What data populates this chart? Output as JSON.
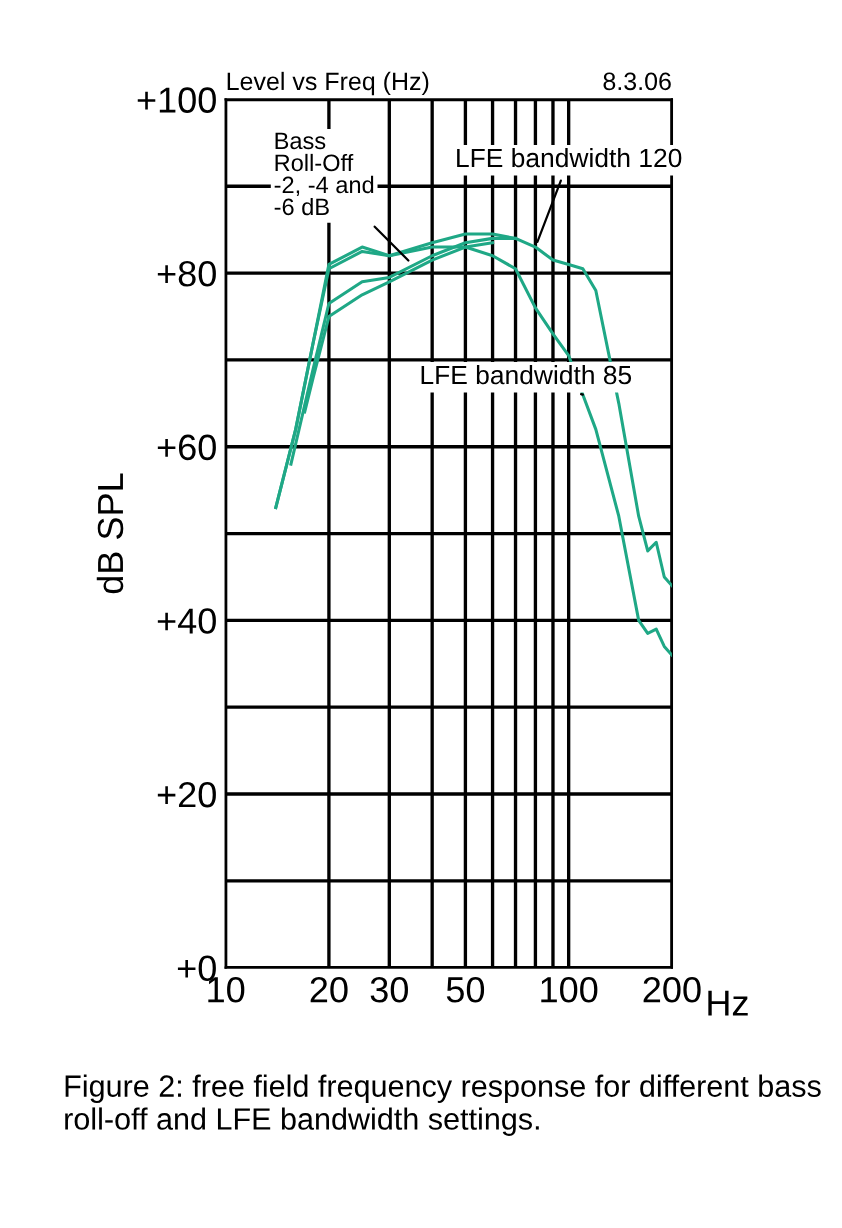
{
  "chart_data": {
    "type": "line",
    "title": "Level vs Freq (Hz)",
    "subtitle": "8.3.06",
    "xlabel": "Hz",
    "ylabel": "dB SPL",
    "log": "x",
    "grid": true,
    "line_style": "solid",
    "marker": "none",
    "xlim": [
      10,
      200
    ],
    "xticks": [
      10,
      20,
      30,
      {
        "value": 40,
        "label": null
      },
      50,
      {
        "value": 60,
        "label": null
      },
      {
        "value": 70,
        "label": null
      },
      {
        "value": 80,
        "label": null
      },
      {
        "value": 90,
        "label": null
      },
      100,
      200
    ],
    "ylim": [
      0,
      100
    ],
    "yticks": [
      {
        "value": 0,
        "label": "+0"
      },
      {
        "value": 10,
        "label": null
      },
      {
        "value": 20,
        "label": "+20"
      },
      {
        "value": 30,
        "label": null
      },
      {
        "value": 40,
        "label": "+40"
      },
      {
        "value": 50,
        "label": null
      },
      {
        "value": 60,
        "label": "+60"
      },
      {
        "value": 70,
        "label": null
      },
      {
        "value": 80,
        "label": "+80"
      },
      {
        "value": 90,
        "label": null
      },
      {
        "value": 100,
        "label": "+100"
      }
    ],
    "series": [
      {
        "color": "#1fa886",
        "x": [
          14,
          16,
          18,
          20,
          25,
          30,
          40,
          50,
          60,
          70,
          80,
          90,
          100,
          110,
          120,
          140,
          160,
          170,
          180,
          190,
          200
        ],
        "values": [
          53,
          62,
          72,
          80.5,
          82.5,
          82,
          83.5,
          84.5,
          84.5,
          84,
          83,
          81.5,
          81,
          80.5,
          78,
          65,
          52,
          48,
          49,
          45,
          44
        ]
      },
      {
        "color": "#1fa886",
        "x": [
          15.5,
          18,
          20,
          25,
          30,
          40,
          50,
          60,
          70
        ],
        "values": [
          58,
          69,
          76.5,
          79,
          79.5,
          82,
          83.5,
          84,
          84
        ]
      },
      {
        "color": "#1fa886",
        "x": [
          17,
          18,
          20,
          25,
          30,
          40,
          50,
          60
        ],
        "values": [
          64,
          68,
          75,
          77.5,
          79,
          81.5,
          83,
          83.5
        ]
      },
      {
        "color": "#1fa886",
        "x": [
          14,
          16,
          18,
          20,
          25,
          30,
          40,
          50,
          60,
          70,
          80,
          90,
          100,
          110,
          120,
          140,
          160,
          170,
          180,
          190,
          200
        ],
        "values": [
          53,
          62,
          72,
          81,
          83,
          82,
          83,
          83,
          82,
          80.5,
          76,
          73,
          70.5,
          66,
          62,
          52,
          40,
          38.5,
          39,
          37,
          36
        ]
      }
    ],
    "annotations": [
      {
        "text": "LFE bandwidth 120",
        "x": 80,
        "y": 83
      },
      {
        "text": "LFE bandwidth 85",
        "x": 110,
        "y": 66
      },
      {
        "text": "Bass\nRoll-Off\n-2, -4 and\n-6 dB",
        "x": 35,
        "y": 81
      },
      "Figure 2: free field frequency response for different bass roll-off and LFE bandwidth settings."
    ]
  }
}
